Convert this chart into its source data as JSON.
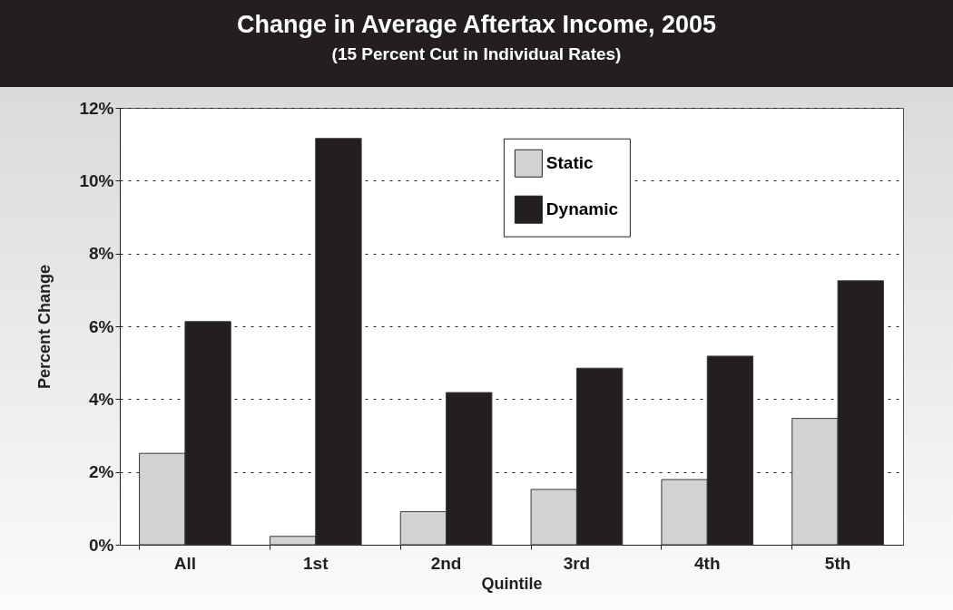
{
  "chart_data": {
    "type": "bar",
    "title": "Change in Average Aftertax Income, 2005",
    "subtitle": "(15 Percent Cut in Individual Rates)",
    "xlabel": "Quintile",
    "ylabel": "Percent Change",
    "categories": [
      "All",
      "1st",
      "2nd",
      "3rd",
      "4th",
      "5th"
    ],
    "series": [
      {
        "name": "Static",
        "color": "#d1d2d4",
        "values": [
          2.51,
          0.23,
          0.91,
          1.52,
          1.79,
          3.47
        ]
      },
      {
        "name": "Dynamic",
        "color": "#231f20",
        "values": [
          6.13,
          11.16,
          4.18,
          4.85,
          5.18,
          7.25
        ]
      }
    ],
    "ylim": [
      0,
      12
    ],
    "yticks": [
      {
        "value": 0,
        "label": "0%"
      },
      {
        "value": 2,
        "label": "2%"
      },
      {
        "value": 4,
        "label": "4%"
      },
      {
        "value": 6,
        "label": "6%"
      },
      {
        "value": 8,
        "label": "8%"
      },
      {
        "value": 10,
        "label": "10%"
      },
      {
        "value": 12,
        "label": "12%"
      }
    ],
    "grid": "y",
    "legend": "top"
  }
}
